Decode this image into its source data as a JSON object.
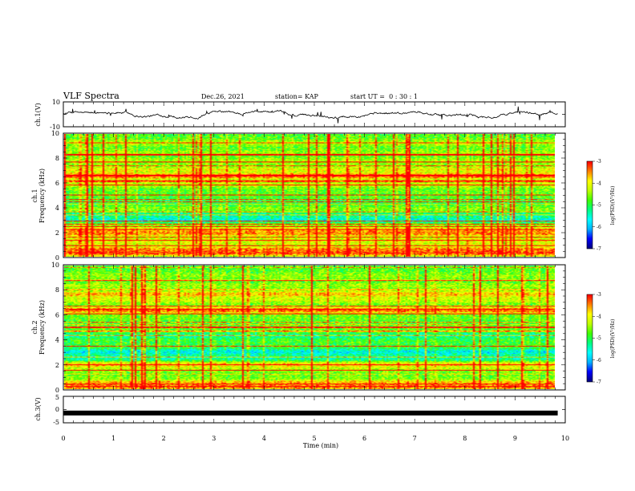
{
  "header": {
    "title": "VLF Spectra",
    "date": "Dec.26, 2021",
    "station": "station= KAP",
    "start_ut": "start UT =  0 : 30 : 1"
  },
  "colors": {
    "spectrum_scale": [
      "#000080",
      "#0000ff",
      "#00b4ff",
      "#00ffff",
      "#00ff80",
      "#40ff00",
      "#c0ff00",
      "#ffff00",
      "#ff8000",
      "#ff0000"
    ],
    "trace": "#000000"
  },
  "chart_data": [
    {
      "type": "line",
      "name": "ch1-waveform",
      "ylabel": "ch.1(V)",
      "ylim": [
        -10,
        10
      ],
      "yticks": [
        "10",
        "-10"
      ],
      "xlim": [
        0,
        10
      ],
      "description_values": "waveform oscillating between about -3 and +3 V"
    },
    {
      "type": "heatmap",
      "name": "ch1-spectrogram",
      "ylabel": "ch.1\nFrequency (kHz)",
      "ylim": [
        0,
        10
      ],
      "yticks": [
        "0",
        "2",
        "4",
        "6",
        "8",
        "10"
      ],
      "xlim": [
        0,
        9.85
      ],
      "colorbar": {
        "label": "log(PSD)(V²/Hz)",
        "range": [
          -7,
          -3
        ],
        "ticks": [
          "-3",
          "-4",
          "-5",
          "-6",
          "-7"
        ]
      },
      "bands_khz": [
        {
          "f": 0.3,
          "level": -3.3
        },
        {
          "f": 0.6,
          "level": -3.5
        },
        {
          "f": 1.0,
          "level": -4.4
        },
        {
          "f": 1.3,
          "level": -4.2
        },
        {
          "f": 1.9,
          "level": -3.6
        },
        {
          "f": 2.2,
          "level": -3.7
        },
        {
          "f": 2.6,
          "level": -4.6
        },
        {
          "f": 3.0,
          "level": -5.8
        },
        {
          "f": 3.4,
          "level": -5.6
        },
        {
          "f": 3.9,
          "level": -4.7
        },
        {
          "f": 4.4,
          "level": -5.2
        },
        {
          "f": 5.2,
          "level": -4.9
        },
        {
          "f": 5.9,
          "level": -4.4
        },
        {
          "f": 6.6,
          "level": -3.4
        },
        {
          "f": 7.1,
          "level": -4.2
        },
        {
          "f": 7.8,
          "level": -4.5
        },
        {
          "f": 8.5,
          "level": -4.6
        },
        {
          "f": 9.3,
          "level": -4.5
        }
      ]
    },
    {
      "type": "heatmap",
      "name": "ch2-spectrogram",
      "ylabel": "ch.2\nFrequency (kHz)",
      "ylim": [
        0,
        10
      ],
      "yticks": [
        "0",
        "2",
        "4",
        "6",
        "8",
        "10"
      ],
      "xlim": [
        0,
        9.85
      ],
      "colorbar": {
        "label": "log(PSD)(V²/Hz)",
        "range": [
          -7,
          -3
        ],
        "ticks": [
          "-3",
          "-4",
          "-5",
          "-6",
          "-7"
        ]
      },
      "bands_khz": [
        {
          "f": 0.2,
          "level": -3.4
        },
        {
          "f": 0.5,
          "level": -3.8
        },
        {
          "f": 1.0,
          "level": -4.8
        },
        {
          "f": 1.6,
          "level": -4.6
        },
        {
          "f": 2.0,
          "level": -3.9
        },
        {
          "f": 2.5,
          "level": -5.6
        },
        {
          "f": 3.0,
          "level": -5.9
        },
        {
          "f": 3.6,
          "level": -5.1
        },
        {
          "f": 4.3,
          "level": -5.5
        },
        {
          "f": 5.0,
          "level": -4.9
        },
        {
          "f": 5.8,
          "level": -4.9
        },
        {
          "f": 6.4,
          "level": -3.5
        },
        {
          "f": 7.2,
          "level": -4.4
        },
        {
          "f": 7.7,
          "level": -3.9
        },
        {
          "f": 8.4,
          "level": -4.6
        },
        {
          "f": 9.2,
          "level": -4.7
        }
      ]
    },
    {
      "type": "line",
      "name": "ch3-signal",
      "ylabel": "ch.3(V)",
      "ylim": [
        -5,
        5
      ],
      "yticks": [
        "5",
        "0",
        "-5"
      ],
      "xlim": [
        0,
        10
      ],
      "value": -1.3
    }
  ],
  "xaxis": {
    "label": "Time (min)",
    "ticks": [
      "0",
      "1",
      "2",
      "3",
      "4",
      "5",
      "6",
      "7",
      "8",
      "9",
      "10"
    ]
  }
}
